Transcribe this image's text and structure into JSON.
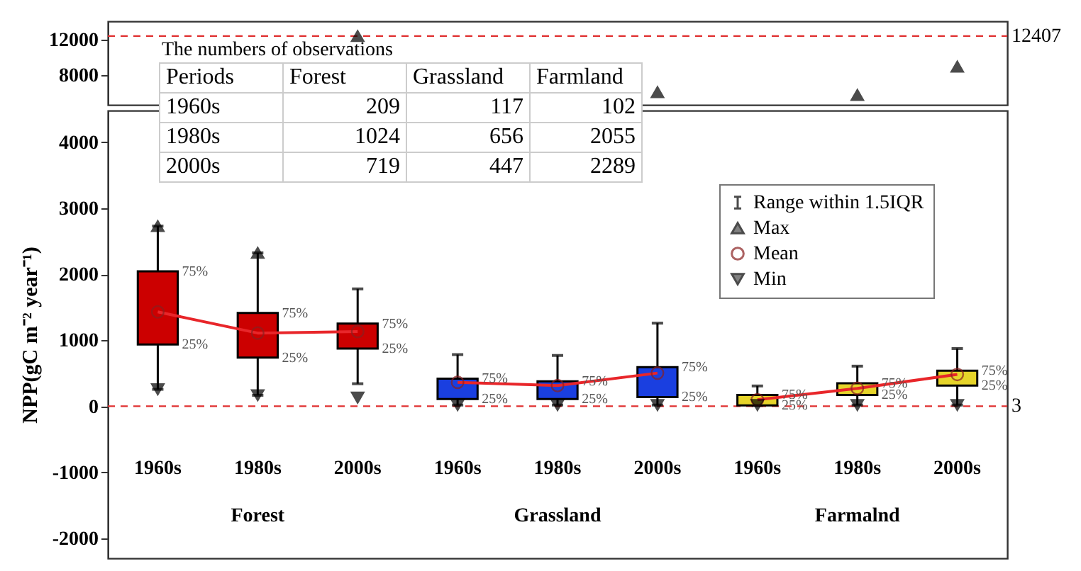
{
  "chart_data": [
    {
      "type": "scatter",
      "categories": [
        null,
        null,
        null,
        null,
        null,
        null,
        null,
        null,
        null
      ],
      "tick_labels": "y",
      "legend": false,
      "ylim": [
        4640,
        14080
      ],
      "yticks": [
        8000,
        12000
      ],
      "series": [
        {
          "marker": "triangle",
          "color": "#000000",
          "values": [
            null,
            null,
            12407,
            null,
            null,
            6080,
            null,
            5760,
            8960
          ]
        }
      ],
      "ref_lines": [
        {
          "axis": "y",
          "value": 12407,
          "label": "12407",
          "color": "#e03030",
          "line_style": "dashed"
        }
      ],
      "annotations": [
        "The numbers of observations",
        "Periods",
        "Forest",
        "Grassland",
        "Farmland",
        "1960s",
        "209",
        "117",
        "102",
        "1980s",
        "1024",
        "656",
        "2055",
        "2000s",
        "719",
        "447",
        "2289"
      ]
    },
    {
      "type": "box",
      "categories": [
        "1960s",
        "1980s",
        "2000s",
        "1960s",
        "1980s",
        "2000s",
        "1960s",
        "1980s",
        "2000s"
      ],
      "ylabel": "NPP(gC m⁻² year⁻¹)",
      "legend": "top right",
      "ylim": [
        -2300,
        4480
      ],
      "yticks": [
        -2000,
        -1000,
        0,
        1000,
        2000,
        3000,
        4000
      ],
      "series": [
        {
          "name": "Range within 1.5IQR",
          "color": "#000000",
          "colors": [
            "#cc0000",
            "#cc0000",
            "#cc0000",
            "#1a3fe0",
            "#1a3fe0",
            "#1a3fe0",
            "#e6d42a",
            "#e6d42a",
            "#e6d42a"
          ],
          "boxes": [
            {
              "low": 258,
              "q1": 938,
              "q3": 2045,
              "high": 2730
            },
            {
              "low": 168,
              "q1": 740,
              "q3": 1415,
              "high": 2325
            },
            {
              "low": 343,
              "q1": 876,
              "q3": 1253,
              "high": 1779
            },
            {
              "low": 20,
              "q1": 112,
              "q3": 420,
              "high": 784
            },
            {
              "low": 20,
              "q1": 112,
              "q3": 378,
              "high": 771
            },
            {
              "low": 20,
              "q1": 141,
              "q3": 595,
              "high": 1260
            },
            {
              "low": 14,
              "q1": 14,
              "q3": 174,
              "high": 309
            },
            {
              "low": 20,
              "q1": 174,
              "q3": 350,
              "high": 609
            },
            {
              "low": 20,
              "q1": 315,
              "q3": 540,
              "high": 876
            }
          ]
        },
        {
          "type": "line",
          "color": "#e8262a",
          "values": [
            1430,
            1110,
            1134,
            null,
            null,
            null,
            null,
            null,
            null
          ]
        },
        {
          "type": "line",
          "color": "#e8262a",
          "values": [
            null,
            null,
            null,
            364,
            315,
            504,
            null,
            null,
            null
          ]
        },
        {
          "type": "line",
          "color": "#e8262a",
          "values": [
            null,
            null,
            null,
            null,
            null,
            null,
            100,
            273,
            483
          ]
        },
        {
          "name": "Max",
          "type": "scatter",
          "marker": "triangle",
          "color": "#000000",
          "values": [
            2730,
            2325,
            null,
            null,
            null,
            null,
            null,
            null,
            null
          ]
        },
        {
          "name": "Mean",
          "type": "scatter",
          "marker": "circle",
          "color": "#8a2020",
          "values": [
            1430,
            1110,
            1134,
            364,
            315,
            504,
            100,
            273,
            483
          ]
        },
        {
          "name": "Min",
          "type": "scatter",
          "marker": "triangle-down",
          "color": "#000000",
          "values": [
            258,
            168,
            132,
            20,
            20,
            20,
            20,
            20,
            20
          ]
        }
      ],
      "ref_lines": [
        {
          "axis": "y",
          "value": 3,
          "label": "3",
          "color": "#e03030",
          "line_style": "dashed"
        }
      ],
      "annotations": [
        "75%",
        "25%",
        "75%",
        "25%",
        "75%",
        "25%",
        "75%",
        "25%",
        "75%",
        "25%",
        "75%",
        "25%",
        "75%",
        "25%",
        "75%",
        "25%",
        "75%",
        "25%",
        "Forest",
        "Grassland",
        "Farmalnd"
      ]
    }
  ]
}
